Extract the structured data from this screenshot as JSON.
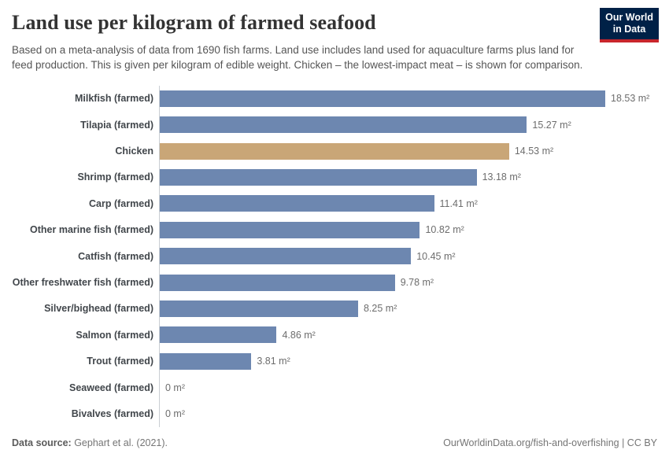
{
  "header": {
    "title": "Land use per kilogram of farmed seafood",
    "subtitle": "Based on a meta-analysis of data from 1690 fish farms. Land use includes land used for aquaculture farms plus land for feed production. This is given per kilogram of edible weight. Chicken – the lowest-impact meat – is shown for comparison.",
    "logo": {
      "line1": "Our World",
      "line2": "in Data"
    }
  },
  "chart_data": {
    "type": "bar",
    "orientation": "horizontal",
    "title": "Land use per kilogram of farmed seafood",
    "unit": "m²",
    "categories": [
      "Milkfish (farmed)",
      "Tilapia (farmed)",
      "Chicken",
      "Shrimp (farmed)",
      "Carp (farmed)",
      "Other marine fish (farmed)",
      "Catfish (farmed)",
      "Other freshwater fish (farmed)",
      "Silver/bighead (farmed)",
      "Salmon (farmed)",
      "Trout (farmed)",
      "Seaweed (farmed)",
      "Bivalves (farmed)"
    ],
    "values": [
      18.53,
      15.27,
      14.53,
      13.18,
      11.41,
      10.82,
      10.45,
      9.78,
      8.25,
      4.86,
      3.81,
      0,
      0
    ],
    "value_labels": [
      "18.53 m²",
      "15.27 m²",
      "14.53 m²",
      "13.18 m²",
      "11.41 m²",
      "10.82 m²",
      "10.45 m²",
      "9.78 m²",
      "8.25 m²",
      "4.86 m²",
      "3.81 m²",
      "0 m²",
      "0 m²"
    ],
    "xlim": [
      0,
      18.53
    ],
    "highlight_category": "Chicken",
    "highlight_index": 2,
    "grid": false,
    "legend": "none"
  },
  "colors": {
    "bar_default": "#6d87b0",
    "bar_highlight": "#c9a677",
    "logo_background": "#002147",
    "logo_accent": "#c8262c",
    "axis_line": "#c9ced3"
  },
  "footer": {
    "datasource_label": "Data source:",
    "datasource_value": " Gephart et al. (2021).",
    "link": "OurWorldinData.org/fish-and-overfishing | CC BY"
  }
}
